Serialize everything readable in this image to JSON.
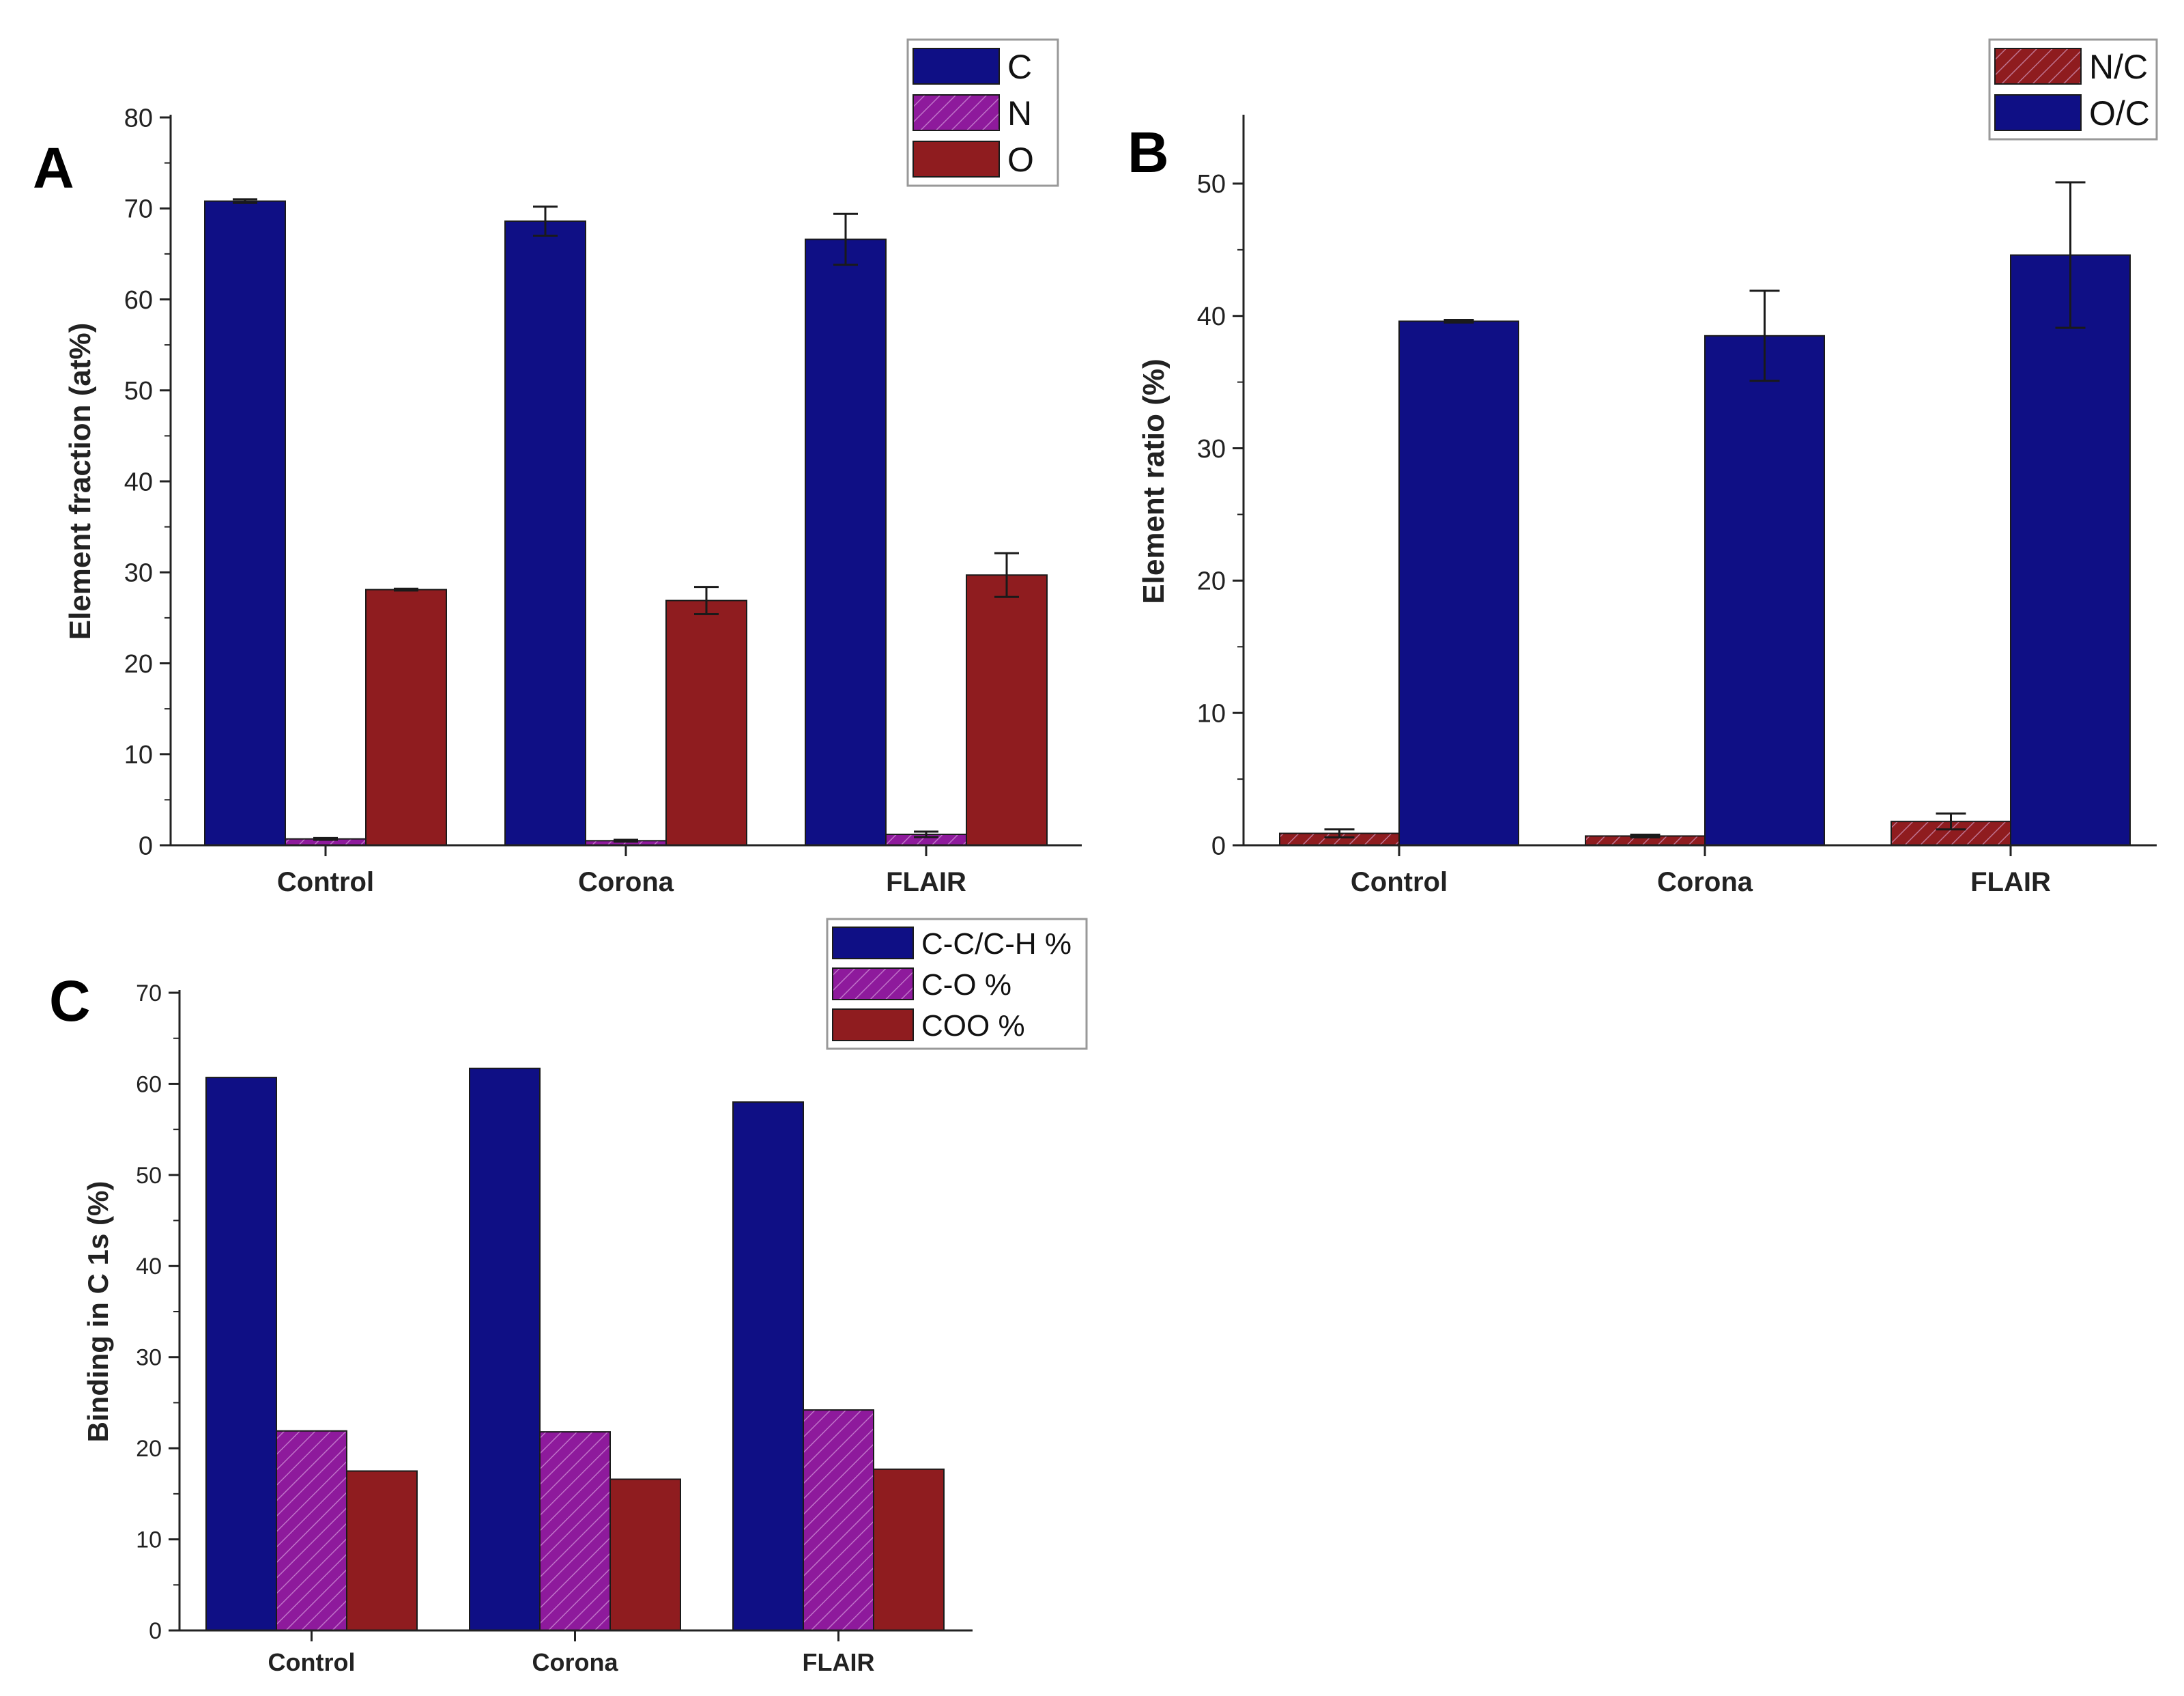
{
  "figure": {
    "colors": {
      "blue": "#0f0f85",
      "purple": "#8e1a9c",
      "red": "#8f1c1f",
      "axis": "#222222",
      "legend_border": "#999999",
      "hatch": "#e7b9ec"
    }
  },
  "chart_data": [
    {
      "panel_label": "A",
      "type": "bar",
      "categories": [
        "Control",
        "Corona",
        "FLAIR"
      ],
      "series": [
        {
          "name": "C",
          "color_key": "blue",
          "hatched": false,
          "values": [
            70.8,
            68.6,
            66.6
          ],
          "errors": [
            0.2,
            1.6,
            2.8
          ]
        },
        {
          "name": "N",
          "color_key": "purple",
          "hatched": true,
          "values": [
            0.7,
            0.5,
            1.2
          ],
          "errors": [
            0.1,
            0.1,
            0.3
          ]
        },
        {
          "name": "O",
          "color_key": "red",
          "hatched": false,
          "values": [
            28.1,
            26.9,
            29.7
          ],
          "errors": [
            0.1,
            1.5,
            2.4
          ]
        }
      ],
      "ylabel": "Element fraction (at%)",
      "ylim": [
        0,
        80
      ],
      "yticks": [
        0,
        10,
        20,
        30,
        40,
        50,
        60,
        70,
        80
      ],
      "ytick_labels": [
        "0",
        "10",
        "20",
        "30",
        "40",
        "50",
        "60",
        "70",
        "80"
      ],
      "legend": "top-right"
    },
    {
      "panel_label": "B",
      "type": "bar",
      "categories": [
        "Control",
        "Corona",
        "FLAIR"
      ],
      "series": [
        {
          "name": "N/C",
          "color_key": "red",
          "hatched": true,
          "values": [
            0.9,
            0.7,
            1.8
          ],
          "errors": [
            0.3,
            0.1,
            0.6
          ]
        },
        {
          "name": "O/C",
          "color_key": "blue",
          "hatched": false,
          "values": [
            39.6,
            38.5,
            44.6
          ],
          "errors": [
            0.1,
            3.4,
            5.5
          ]
        }
      ],
      "ylabel": "Element ratio (%)",
      "ylim": [
        0,
        55
      ],
      "yticks": [
        0,
        10,
        20,
        30,
        40,
        50
      ],
      "ytick_labels": [
        "0",
        "10",
        "20",
        "30",
        "40",
        "50"
      ],
      "legend": "top-right"
    },
    {
      "panel_label": "C",
      "type": "bar",
      "categories": [
        "Control",
        "Corona",
        "FLAIR"
      ],
      "series": [
        {
          "name": "C-C/C-H %",
          "color_key": "blue",
          "hatched": false,
          "values": [
            60.7,
            61.7,
            58.0
          ]
        },
        {
          "name": "C-O %",
          "color_key": "purple",
          "hatched": true,
          "values": [
            21.9,
            21.8,
            24.2
          ]
        },
        {
          "name": "COO %",
          "color_key": "red",
          "hatched": false,
          "values": [
            17.5,
            16.6,
            17.7
          ]
        }
      ],
      "ylabel": "Binding in C 1s (%)",
      "ylim": [
        0,
        70
      ],
      "yticks": [
        0,
        10,
        20,
        30,
        40,
        50,
        60,
        70
      ],
      "ytick_labels": [
        "0",
        "10",
        "20",
        "30",
        "40",
        "50",
        "60",
        "70"
      ],
      "legend": "top-right"
    }
  ]
}
